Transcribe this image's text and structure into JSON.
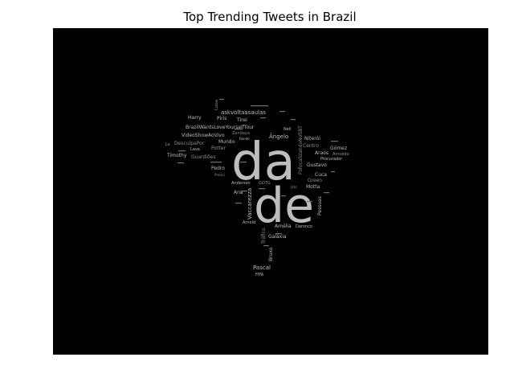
{
  "title": "Top Trending Tweets in Brazil",
  "colors": {
    "background": "#000000",
    "figure_background": "#ffffff",
    "word_primary": "#bdbdbd",
    "word_secondary": "#8c8c8c"
  },
  "words": {
    "da": "da",
    "de": "de",
    "askvoltaasaulas": "askvoltaasaulas",
    "harry": "Harry",
    "piris": "Piris",
    "tirei": "Tirei",
    "brazilwantslove": "BrazilWantsLoveYourselfTour",
    "nell": "Nell",
    "zendaya": "Zendaya",
    "videoshow": "VideoShowAoVivo",
    "mundo": "Mundo",
    "desculpapor": "DesculpaPor",
    "le": "Le",
    "lava": "Lava",
    "potter": "Potter",
    "timothy": "Timothy",
    "guardioes": "Guardiões",
    "pedro": "Pedro",
    "angelo": "Ângelo",
    "fofocalizando": "FofocalizandoNoSBT",
    "niteroi": "Niterói",
    "centro": "Centro",
    "gomez": "Gómez",
    "araos": "Araos",
    "amoedo": "Amoêdo",
    "procurador": "Procurador",
    "gustavo": "Gustavo",
    "cuca": "Cuca",
    "green": "Green",
    "motta": "Motta",
    "anderson": "Anderson",
    "goto": "GOTG",
    "ana": "Ana",
    "vaccarezza": "Vaccarezza",
    "pessoas": "Pessoas",
    "amelia": "Amélia",
    "daronco": "Daronco",
    "arnold": "Arnold",
    "trafico": "Tráfico",
    "galaxia": "Galáxia",
    "bruxo": "Bruxo",
    "pascal": "Pascal",
    "fifa": "FIFA",
    "luisa": "Luisa",
    "ronde": "Ronde",
    "jato": "Jato",
    "prouni": "ProUni"
  }
}
